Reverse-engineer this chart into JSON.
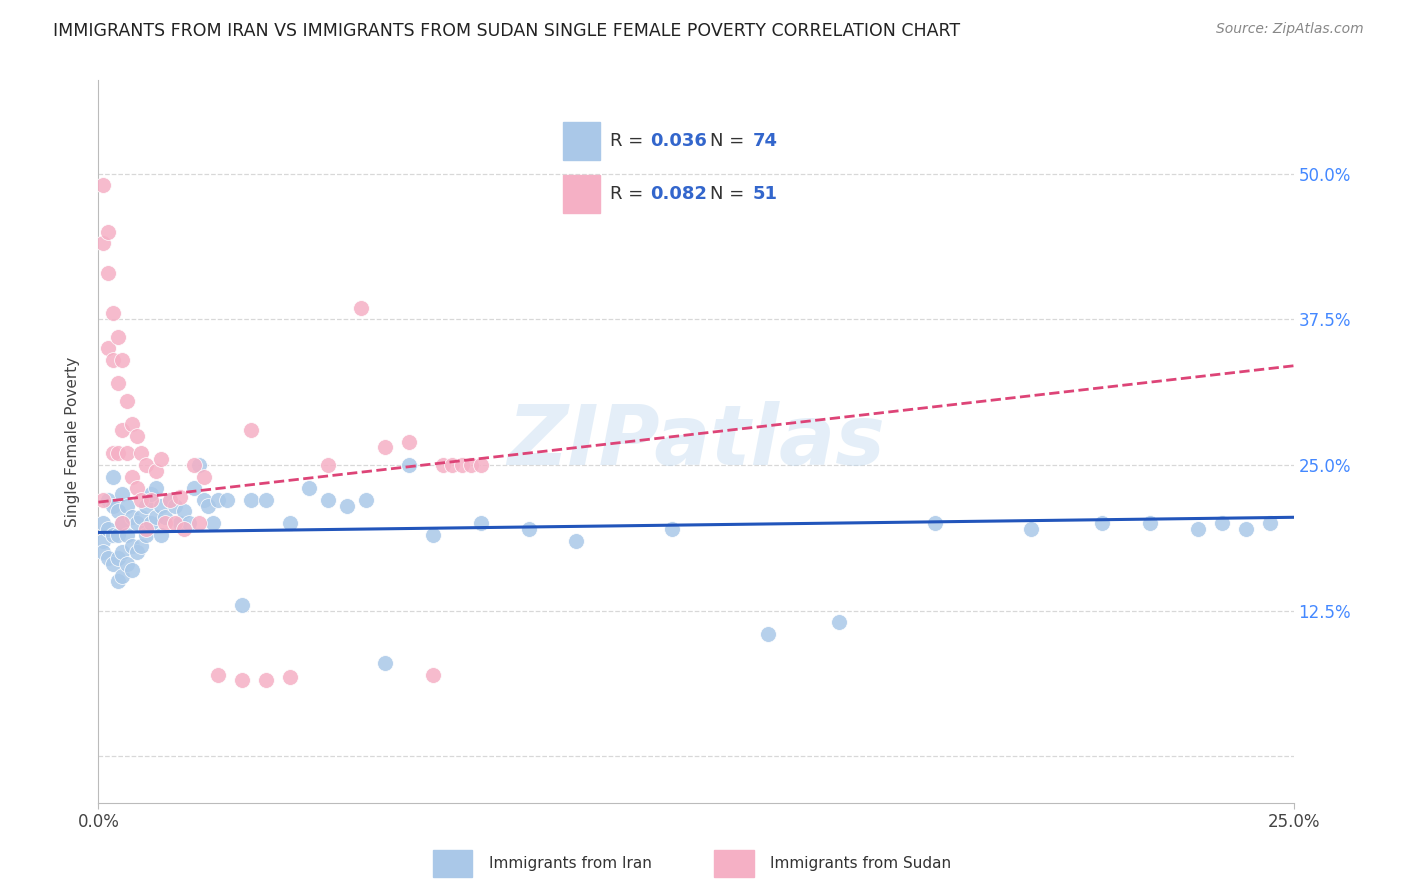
{
  "title": "IMMIGRANTS FROM IRAN VS IMMIGRANTS FROM SUDAN SINGLE FEMALE POVERTY CORRELATION CHART",
  "source": "Source: ZipAtlas.com",
  "ylabel": "Single Female Poverty",
  "iran_R": "0.036",
  "iran_N": "74",
  "sudan_R": "0.082",
  "sudan_N": "51",
  "iran_color": "#aac8e8",
  "sudan_color": "#f5b0c5",
  "iran_line_color": "#2255bb",
  "sudan_line_color": "#dd4477",
  "xmin": 0.0,
  "xmax": 0.25,
  "ymin": -0.04,
  "ymax": 0.58,
  "ytick_values": [
    0.0,
    0.125,
    0.25,
    0.375,
    0.5
  ],
  "ytick_labels": [
    "",
    "12.5%",
    "25.0%",
    "37.5%",
    "50.0%"
  ],
  "watermark": "ZIPatlas",
  "background_color": "#ffffff",
  "grid_color": "#d8d8d8",
  "iran_x": [
    0.001,
    0.001,
    0.001,
    0.002,
    0.002,
    0.002,
    0.003,
    0.003,
    0.003,
    0.003,
    0.004,
    0.004,
    0.004,
    0.004,
    0.005,
    0.005,
    0.005,
    0.005,
    0.006,
    0.006,
    0.006,
    0.007,
    0.007,
    0.007,
    0.008,
    0.008,
    0.009,
    0.009,
    0.01,
    0.01,
    0.011,
    0.011,
    0.012,
    0.012,
    0.013,
    0.013,
    0.014,
    0.015,
    0.016,
    0.017,
    0.018,
    0.019,
    0.02,
    0.021,
    0.022,
    0.023,
    0.024,
    0.025,
    0.027,
    0.03,
    0.032,
    0.035,
    0.04,
    0.044,
    0.048,
    0.052,
    0.056,
    0.06,
    0.065,
    0.07,
    0.08,
    0.09,
    0.1,
    0.12,
    0.14,
    0.155,
    0.175,
    0.195,
    0.21,
    0.22,
    0.23,
    0.235,
    0.24,
    0.245
  ],
  "iran_y": [
    0.2,
    0.185,
    0.175,
    0.22,
    0.195,
    0.17,
    0.24,
    0.215,
    0.19,
    0.165,
    0.21,
    0.19,
    0.17,
    0.15,
    0.225,
    0.2,
    0.175,
    0.155,
    0.215,
    0.19,
    0.165,
    0.205,
    0.18,
    0.16,
    0.2,
    0.175,
    0.205,
    0.18,
    0.215,
    0.19,
    0.225,
    0.2,
    0.23,
    0.205,
    0.215,
    0.19,
    0.205,
    0.22,
    0.215,
    0.2,
    0.21,
    0.2,
    0.23,
    0.25,
    0.22,
    0.215,
    0.2,
    0.22,
    0.22,
    0.13,
    0.22,
    0.22,
    0.2,
    0.23,
    0.22,
    0.215,
    0.22,
    0.08,
    0.25,
    0.19,
    0.2,
    0.195,
    0.185,
    0.195,
    0.105,
    0.115,
    0.2,
    0.195,
    0.2,
    0.2,
    0.195,
    0.2,
    0.195,
    0.2
  ],
  "sudan_x": [
    0.001,
    0.001,
    0.001,
    0.002,
    0.002,
    0.002,
    0.003,
    0.003,
    0.003,
    0.004,
    0.004,
    0.004,
    0.005,
    0.005,
    0.005,
    0.006,
    0.006,
    0.007,
    0.007,
    0.008,
    0.008,
    0.009,
    0.009,
    0.01,
    0.01,
    0.011,
    0.012,
    0.013,
    0.014,
    0.015,
    0.016,
    0.017,
    0.018,
    0.02,
    0.021,
    0.022,
    0.025,
    0.03,
    0.032,
    0.035,
    0.04,
    0.048,
    0.055,
    0.06,
    0.065,
    0.07,
    0.072,
    0.074,
    0.076,
    0.078,
    0.08
  ],
  "sudan_y": [
    0.49,
    0.44,
    0.22,
    0.45,
    0.415,
    0.35,
    0.38,
    0.34,
    0.26,
    0.36,
    0.32,
    0.26,
    0.34,
    0.28,
    0.2,
    0.305,
    0.26,
    0.285,
    0.24,
    0.275,
    0.23,
    0.26,
    0.22,
    0.25,
    0.195,
    0.22,
    0.245,
    0.255,
    0.2,
    0.22,
    0.2,
    0.222,
    0.195,
    0.25,
    0.2,
    0.24,
    0.07,
    0.065,
    0.28,
    0.065,
    0.068,
    0.25,
    0.385,
    0.265,
    0.27,
    0.07,
    0.25,
    0.25,
    0.25,
    0.25,
    0.25
  ]
}
